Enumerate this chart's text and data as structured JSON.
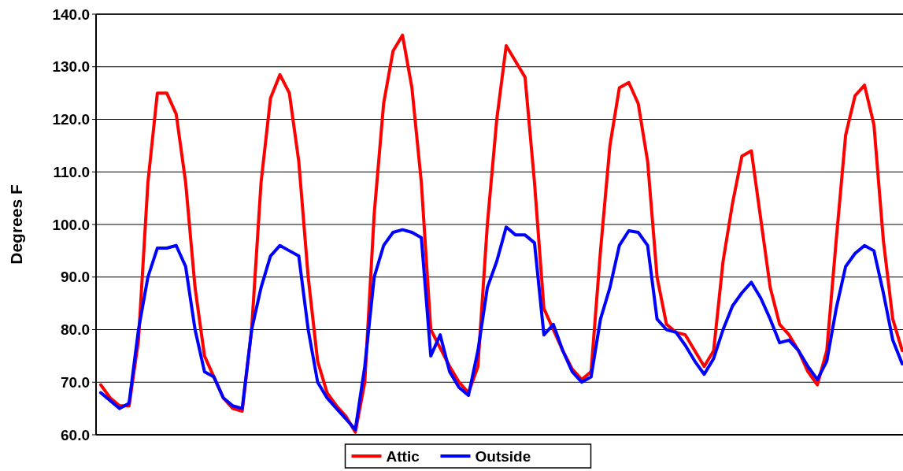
{
  "chart_data": {
    "type": "line",
    "ylabel": "Degrees F",
    "categories": [
      null,
      null,
      null,
      null,
      null,
      null,
      null,
      null,
      null,
      null,
      null,
      null,
      null,
      null,
      null,
      null,
      null,
      null,
      null,
      null,
      null,
      null,
      null,
      null,
      null,
      null,
      null,
      null,
      null,
      null,
      null,
      null,
      null,
      null,
      null,
      null,
      null,
      null,
      null,
      null,
      null,
      null,
      null,
      null,
      null,
      null,
      null,
      null,
      null,
      null,
      null,
      null,
      null,
      null,
      null,
      null,
      null,
      null,
      null,
      null,
      null,
      null,
      null,
      null,
      null,
      null,
      null,
      null,
      null,
      null,
      null,
      null,
      null,
      null,
      null,
      null,
      null,
      null,
      null,
      null,
      null,
      null,
      null,
      null,
      null,
      null
    ],
    "series": [
      {
        "name": "Attic",
        "color": "#ff0000",
        "values": [
          69.5,
          67,
          65.5,
          65.5,
          78,
          108,
          125,
          125,
          121,
          108,
          88,
          75,
          71,
          67,
          65,
          64.5,
          80,
          108,
          124,
          128.5,
          125,
          112,
          90,
          74,
          68,
          65.5,
          63.5,
          60.5,
          70,
          102,
          123,
          133,
          136,
          126,
          108,
          80,
          76.5,
          73,
          70,
          68,
          73,
          100,
          120,
          134,
          131,
          128,
          108,
          84,
          80,
          76,
          72.5,
          70.5,
          72,
          95,
          115,
          126,
          127,
          123,
          112,
          90,
          81,
          79.5,
          79,
          76,
          73,
          76,
          93,
          104,
          113,
          114,
          101,
          88,
          81,
          79,
          76,
          72,
          69.5,
          76,
          97,
          117,
          124.5,
          126.5,
          119,
          97,
          82,
          76
        ]
      },
      {
        "name": "Outside",
        "color": "#0000ff",
        "values": [
          68,
          66.5,
          65,
          66,
          80,
          90,
          95.5,
          95.5,
          96,
          92,
          80,
          72,
          71,
          67,
          65.5,
          65,
          80,
          88,
          94,
          96,
          95,
          94,
          80,
          70,
          67,
          65,
          63,
          61,
          73,
          90,
          96,
          98.5,
          99,
          98.5,
          97.5,
          75,
          79,
          72,
          69,
          67.5,
          76,
          88,
          93,
          99.5,
          98,
          98,
          96.5,
          79,
          81,
          76,
          72,
          70,
          71,
          82,
          88,
          96,
          98.8,
          98.5,
          96,
          82,
          80,
          79.5,
          77,
          74,
          71.5,
          74.5,
          80,
          84.5,
          87,
          89,
          86,
          82,
          77.5,
          78,
          76,
          73,
          70.5,
          74,
          84,
          92,
          94.5,
          96,
          95,
          87,
          78,
          73.5
        ]
      }
    ],
    "ylim": [
      60,
      140
    ],
    "yticks": [
      {
        "value": 60,
        "label": "60.0"
      },
      {
        "value": 70,
        "label": "70.0"
      },
      {
        "value": 80,
        "label": "80.0"
      },
      {
        "value": 90,
        "label": "90.0"
      },
      {
        "value": 100,
        "label": "100.0"
      },
      {
        "value": 110,
        "label": "110.0"
      },
      {
        "value": 120,
        "label": "120.0"
      },
      {
        "value": 130,
        "label": "130.0"
      },
      {
        "value": 140,
        "label": "140.0"
      }
    ],
    "grid": "y",
    "legend": "bottom",
    "line_style": "solid",
    "marker": "none"
  }
}
